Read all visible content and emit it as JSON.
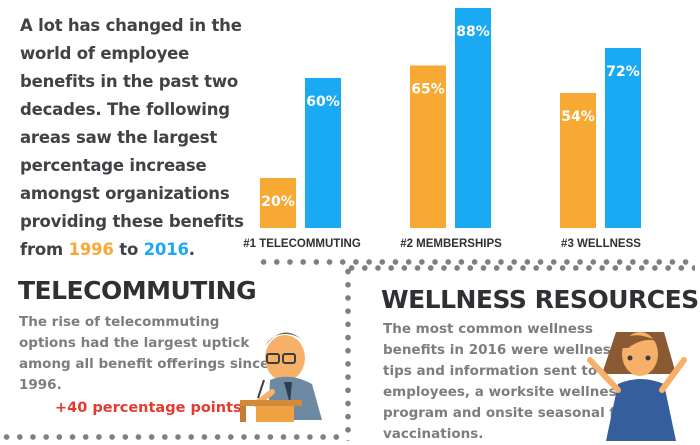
{
  "intro": {
    "text": "A lot has changed in the world of employee benefits in the past two decades. The following areas saw the largest percentage increase amongst organizations providing these benefits from",
    "year_start": "1996",
    "connector": "to",
    "year_end": "2016",
    "end_punct": "."
  },
  "chart_data": {
    "type": "bar",
    "categories": [
      "#1 TELECOMMUTING",
      "#2 MEMBERSHIPS",
      "#3 WELLNESS"
    ],
    "series": [
      {
        "name": "1996",
        "color": "#f7a934",
        "values": [
          20,
          65,
          54
        ]
      },
      {
        "name": "2016",
        "color": "#19aaf3",
        "values": [
          60,
          88,
          72
        ]
      }
    ],
    "value_suffix": "%",
    "ylim": [
      0,
      100
    ],
    "grid": false,
    "legend": "none"
  },
  "telecommuting": {
    "title": "TELECOMMUTING",
    "text": "The rise of telecommuting options had the largest uptick among all benefit offerings since 1996.",
    "callout": "+40 percentage points"
  },
  "wellness": {
    "title": "WELLNESS RESOURCES",
    "text": "The most common wellness benefits in 2016 were wellness tips and information sent to employees, a worksite wellness program and onsite seasonal flu vaccinations."
  },
  "colors": {
    "orange": "#f7a934",
    "blue": "#19aaf3",
    "text_dark": "#404246",
    "text_gray": "#7b7d80",
    "accent_red": "#e53a2e"
  }
}
